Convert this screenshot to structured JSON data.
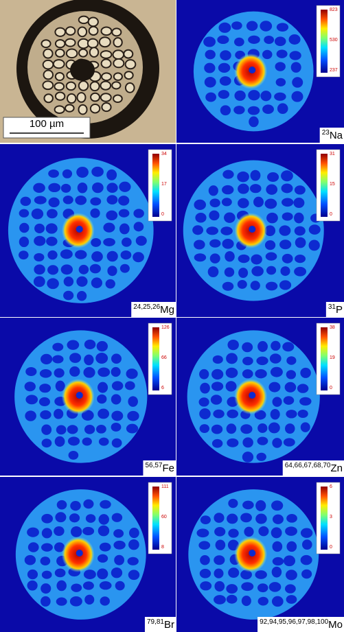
{
  "scale_bar": "100 µm",
  "panels": [
    {
      "mass": "23",
      "element": "Na",
      "colorbar": [
        823,
        530,
        237
      ]
    },
    {
      "mass": "24,25,26",
      "element": "Mg",
      "colorbar": [
        34,
        17,
        0
      ]
    },
    {
      "mass": "31",
      "element": "P",
      "colorbar": [
        31,
        15,
        0
      ]
    },
    {
      "mass": "56,57",
      "element": "Fe",
      "colorbar": [
        126,
        66,
        6
      ]
    },
    {
      "mass": "64,66,67,68,70",
      "element": "Zn",
      "colorbar": [
        38,
        19,
        0
      ]
    },
    {
      "mass": "79,81",
      "element": "Br",
      "colorbar": [
        111,
        60,
        8
      ]
    },
    {
      "mass": "92,94,95,96,97,98,100",
      "element": "Mo",
      "colorbar": [
        6,
        3,
        0
      ]
    }
  ]
}
